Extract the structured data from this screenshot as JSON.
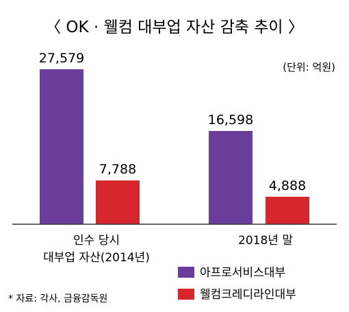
{
  "chart_data": {
    "type": "bar",
    "title": "〈 OK · 웰컴 대부업 자산 감축 추이 〉",
    "unit_note": "(단위: 억원)",
    "categories": [
      [
        "인수 당시",
        "대부업 자산(2014년)"
      ],
      [
        "2018년 말"
      ]
    ],
    "series": [
      {
        "name": "아프로서비스대부",
        "color": "#6a3d9a",
        "values": [
          27579,
          16598
        ],
        "labels": [
          "27,579",
          "16,598"
        ]
      },
      {
        "name": "웰컴크레디라인대부",
        "color": "#d7262e",
        "values": [
          7788,
          4888
        ],
        "labels": [
          "7,788",
          "4,888"
        ]
      }
    ],
    "ylim": [
      0,
      27579
    ],
    "grid": false,
    "legend_position": "bottom-right",
    "source": "* 자료: 각사, 금융감독원"
  }
}
